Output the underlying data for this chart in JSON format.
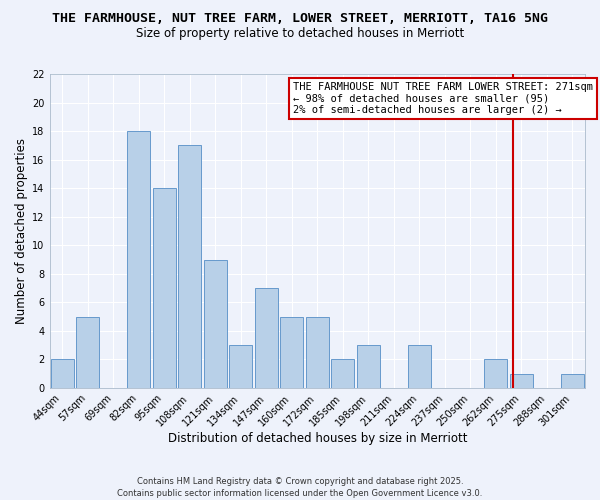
{
  "title": "THE FARMHOUSE, NUT TREE FARM, LOWER STREET, MERRIOTT, TA16 5NG",
  "subtitle": "Size of property relative to detached houses in Merriott",
  "xlabel": "Distribution of detached houses by size in Merriott",
  "ylabel": "Number of detached properties",
  "bar_labels": [
    "44sqm",
    "57sqm",
    "69sqm",
    "82sqm",
    "95sqm",
    "108sqm",
    "121sqm",
    "134sqm",
    "147sqm",
    "160sqm",
    "172sqm",
    "185sqm",
    "198sqm",
    "211sqm",
    "224sqm",
    "237sqm",
    "250sqm",
    "262sqm",
    "275sqm",
    "288sqm",
    "301sqm"
  ],
  "bar_values": [
    2,
    5,
    0,
    18,
    14,
    17,
    9,
    3,
    7,
    5,
    5,
    2,
    3,
    0,
    3,
    0,
    0,
    2,
    1,
    0,
    1
  ],
  "bar_color": "#b8d0e8",
  "bar_edge_color": "#6699cc",
  "ylim": [
    0,
    22
  ],
  "yticks": [
    0,
    2,
    4,
    6,
    8,
    10,
    12,
    14,
    16,
    18,
    20,
    22
  ],
  "vline_color": "#cc0000",
  "annotation_title": "THE FARMHOUSE NUT TREE FARM LOWER STREET: 271sqm",
  "annotation_line2": "← 98% of detached houses are smaller (95)",
  "annotation_line3": "2% of semi-detached houses are larger (2) →",
  "footer1": "Contains HM Land Registry data © Crown copyright and database right 2025.",
  "footer2": "Contains public sector information licensed under the Open Government Licence v3.0.",
  "background_color": "#eef2fb",
  "grid_color": "#ffffff",
  "title_fontsize": 9.5,
  "subtitle_fontsize": 8.5,
  "axis_label_fontsize": 8.5,
  "tick_fontsize": 7,
  "annotation_fontsize": 7.5,
  "footer_fontsize": 6
}
